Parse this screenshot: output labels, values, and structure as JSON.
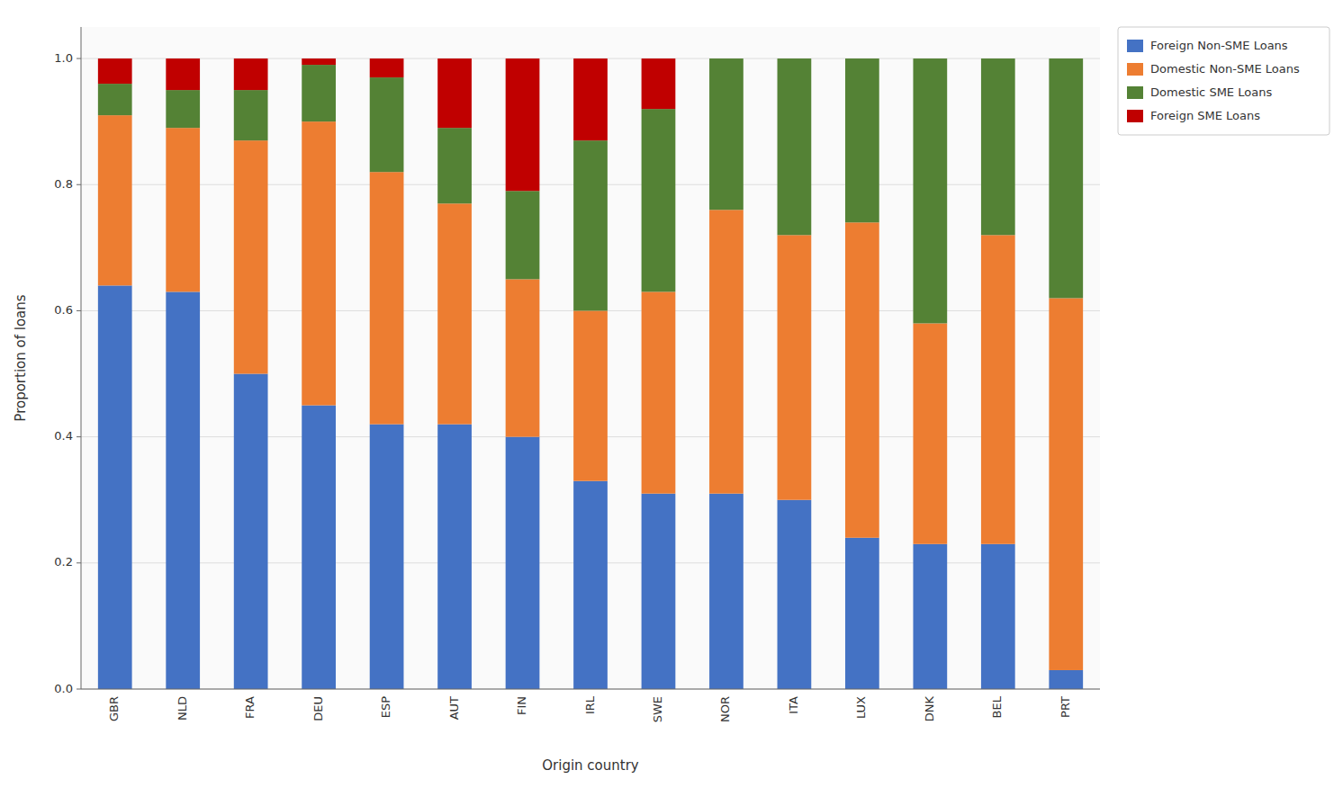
{
  "chart_data": {
    "type": "bar",
    "stacked": true,
    "categories": [
      "GBR",
      "NLD",
      "FRA",
      "DEU",
      "ESP",
      "AUT",
      "FIN",
      "IRL",
      "SWE",
      "NOR",
      "ITA",
      "LUX",
      "DNK",
      "BEL",
      "PRT"
    ],
    "series": [
      {
        "name": "Foreign Non-SME Loans",
        "color": "#4472c4",
        "values": [
          0.64,
          0.63,
          0.5,
          0.45,
          0.42,
          0.42,
          0.4,
          0.33,
          0.31,
          0.31,
          0.3,
          0.24,
          0.23,
          0.23,
          0.03
        ]
      },
      {
        "name": "Domestic Non-SME Loans",
        "color": "#ed7d31",
        "values": [
          0.27,
          0.26,
          0.37,
          0.45,
          0.4,
          0.35,
          0.25,
          0.27,
          0.32,
          0.45,
          0.42,
          0.5,
          0.35,
          0.49,
          0.59
        ]
      },
      {
        "name": "Domestic SME Loans",
        "color": "#548235",
        "values": [
          0.05,
          0.06,
          0.08,
          0.09,
          0.15,
          0.12,
          0.14,
          0.27,
          0.29,
          0.24,
          0.28,
          0.26,
          0.42,
          0.28,
          0.38
        ]
      },
      {
        "name": "Foreign SME Loans",
        "color": "#c00000",
        "values": [
          0.04,
          0.05,
          0.05,
          0.01,
          0.03,
          0.11,
          0.21,
          0.13,
          0.08,
          0.0,
          0.0,
          0.0,
          0.0,
          0.0,
          0.0
        ]
      }
    ],
    "xlabel": "Origin country",
    "ylabel": "Proportion of loans",
    "ylim": [
      0.0,
      1.05
    ],
    "yticks": [
      {
        "value": 0.0,
        "label": "0.0"
      },
      0.2,
      0.4,
      0.6,
      0.8,
      {
        "value": 1.0,
        "label": "1.0"
      }
    ],
    "grid": true,
    "legend": "upper right"
  }
}
